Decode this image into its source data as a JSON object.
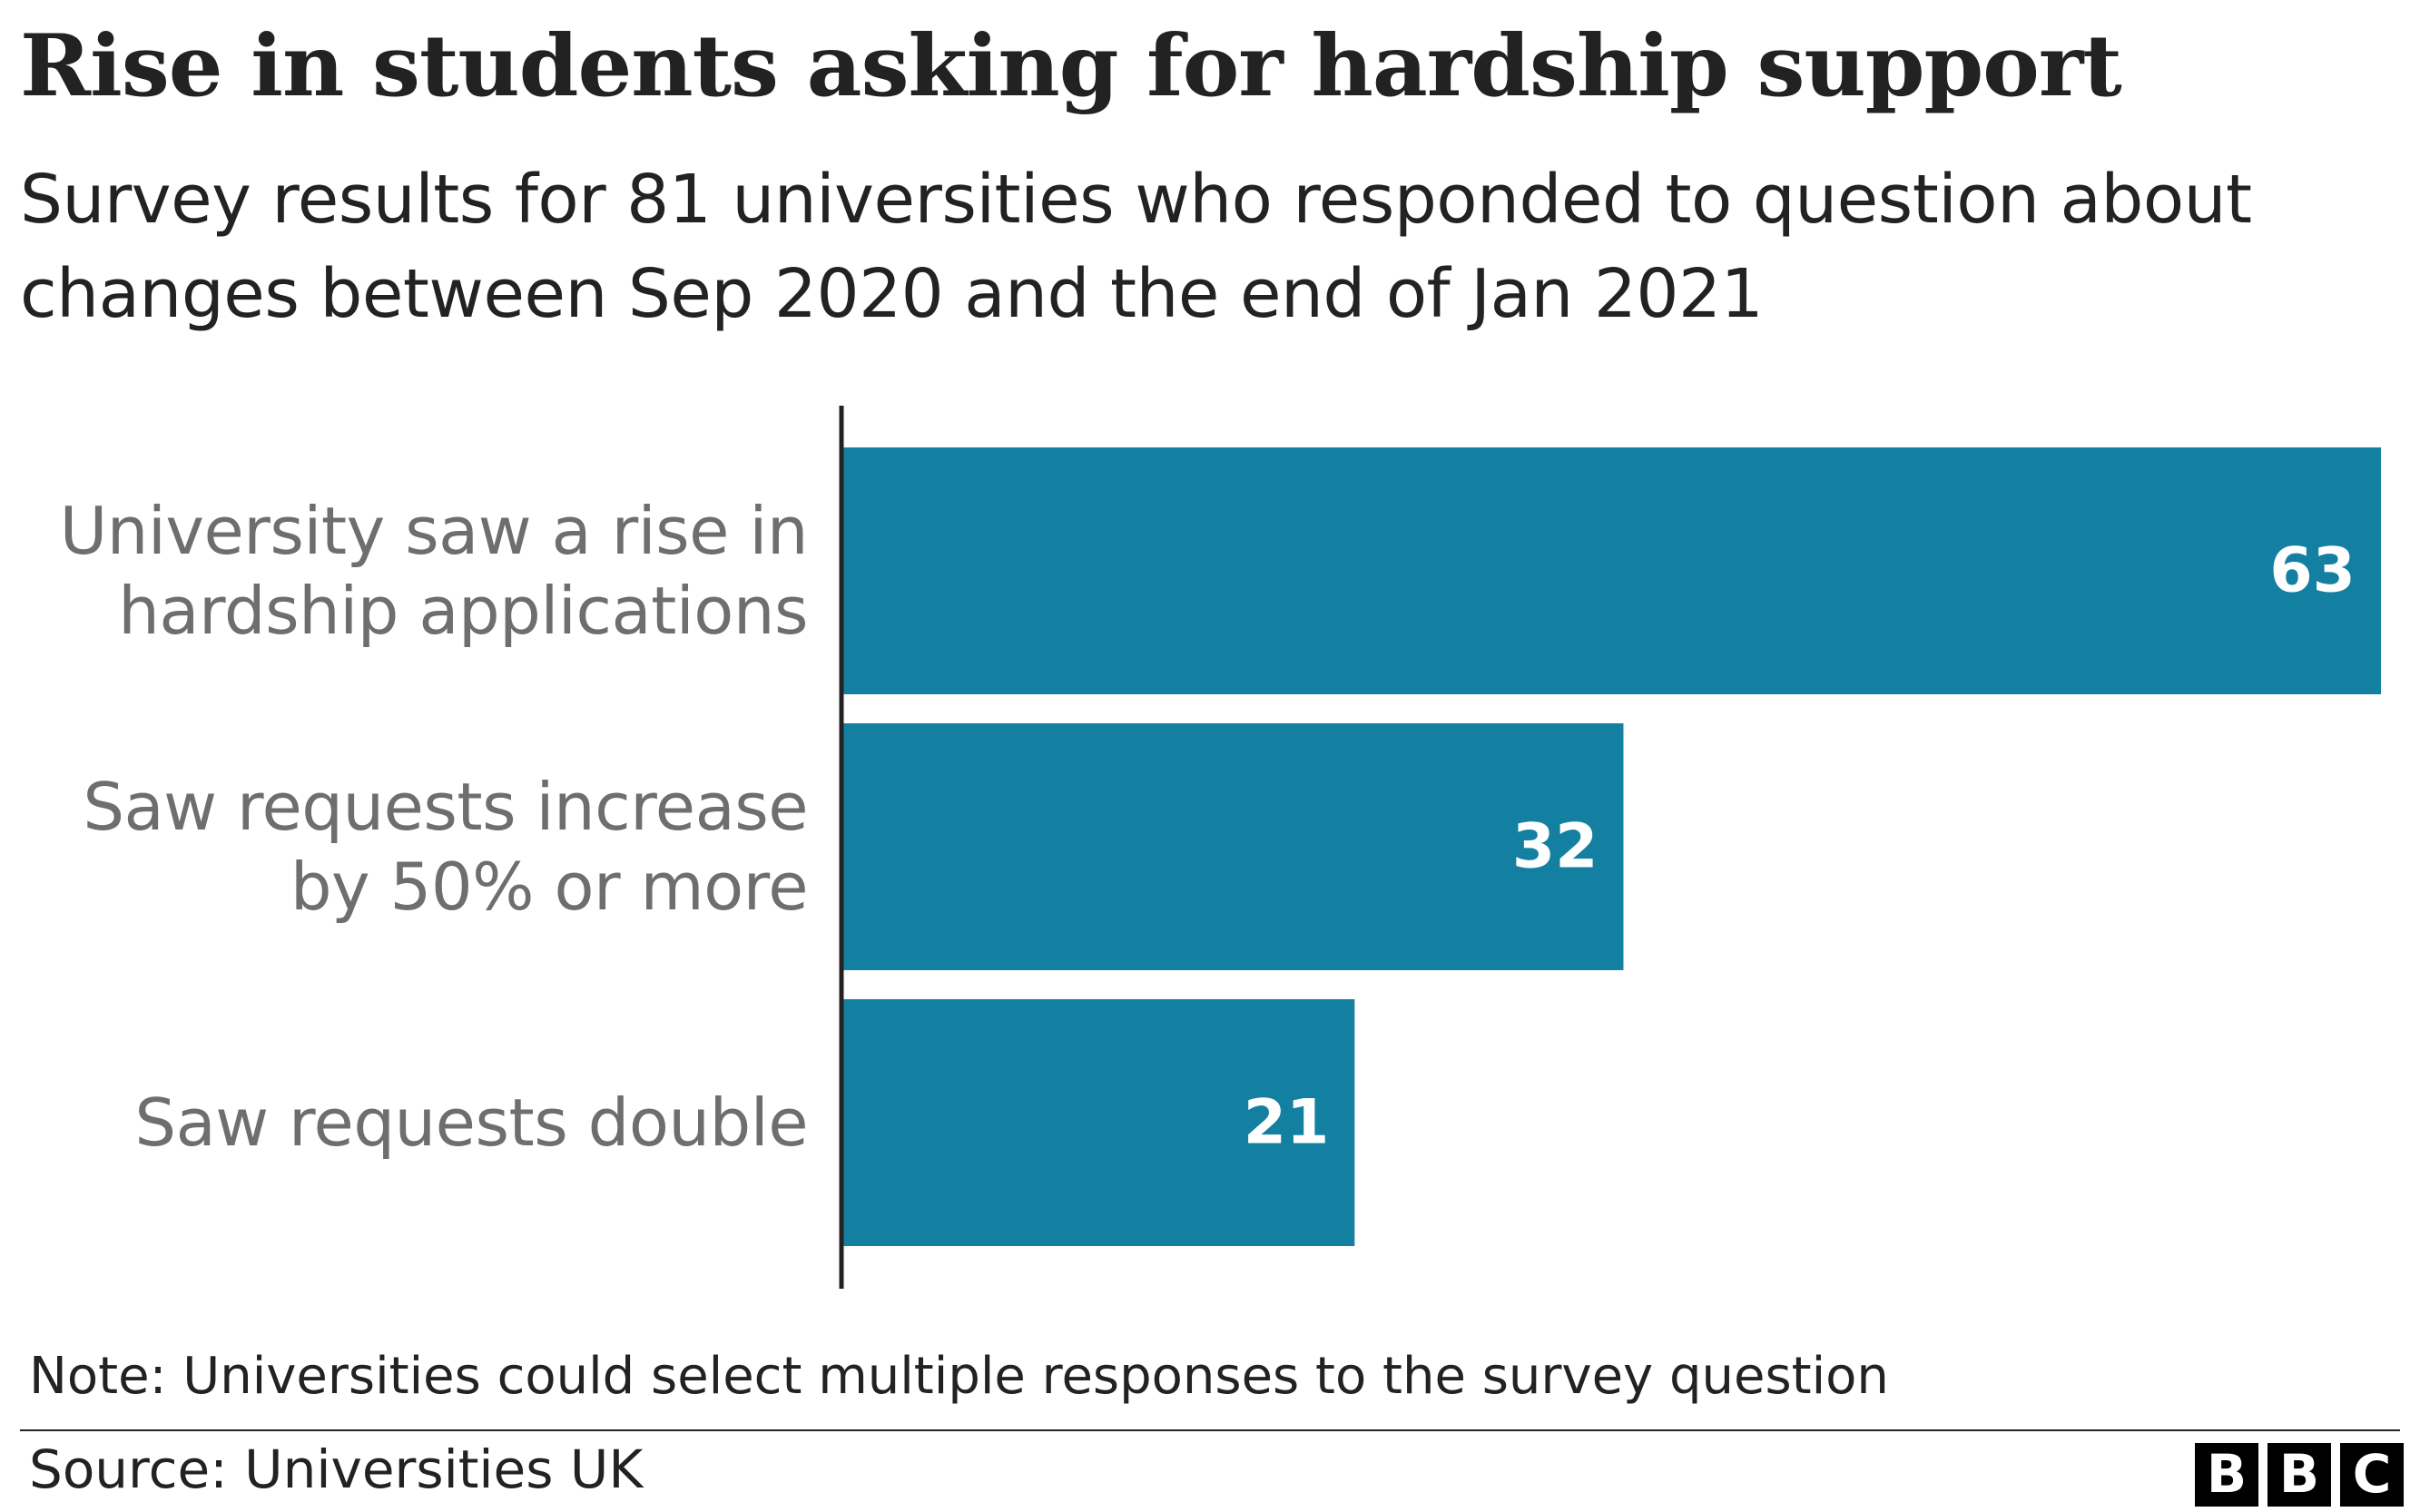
{
  "chart_data": {
    "type": "bar",
    "orientation": "horizontal",
    "title": "Rise in students asking for hardship support",
    "subtitle": "Survey results for 81 universities who responded to question about changes between Sep 2020 and the end of Jan 2021",
    "categories": [
      "University saw a rise in hardship applications",
      "Saw requests increase by 50% or more",
      "Saw requests double"
    ],
    "values": [
      63,
      32,
      21
    ],
    "color": "#1380a1",
    "note": "Note: Universities could select multiple responses to the survey question",
    "source": "Source: Universities UK",
    "logo": [
      "B",
      "B",
      "C"
    ]
  }
}
